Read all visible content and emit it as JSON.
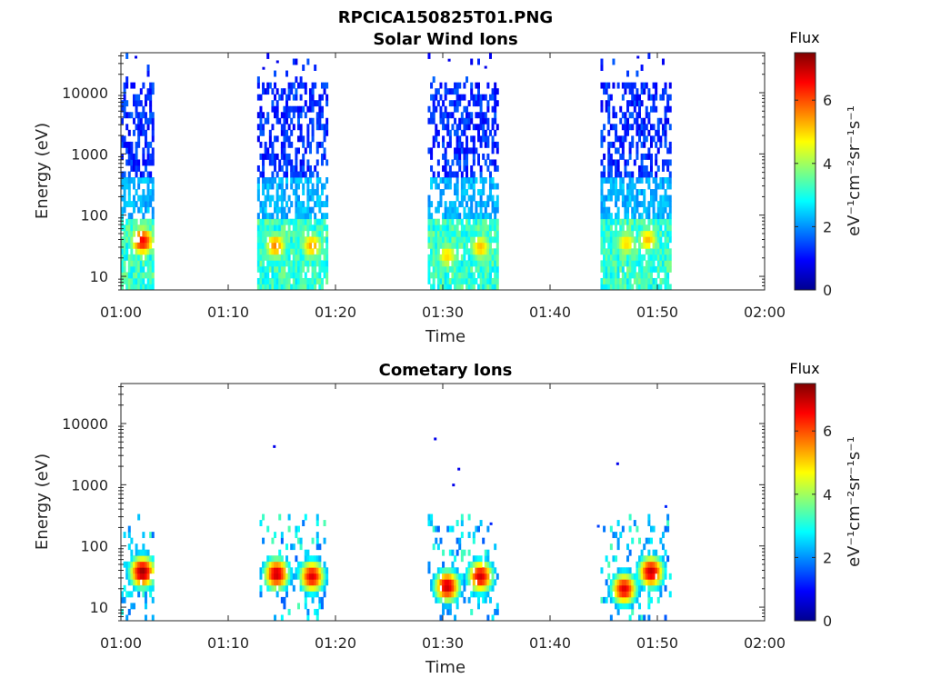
{
  "figure": {
    "title": "RPCICA150825T01.PNG"
  },
  "chart_data": [
    {
      "type": "heatmap",
      "title": "Solar Wind Ions",
      "xlabel": "Time",
      "ylabel": "Energy (eV)",
      "x_ticks": [
        "01:00",
        "01:10",
        "01:20",
        "01:30",
        "01:40",
        "01:50",
        "02:00"
      ],
      "xlim_minutes_after_0100": [
        0,
        60
      ],
      "y_scale": "log",
      "y_ticks": [
        "10",
        "100",
        "1000",
        "10000"
      ],
      "ylim": [
        6,
        45000
      ],
      "colorbar": {
        "title": "Flux",
        "label": "eV⁻¹cm⁻²sr⁻¹s⁻¹",
        "ticks": [
          "0",
          "2",
          "4",
          "6"
        ],
        "range": [
          0,
          7.5
        ],
        "colormap": "jet"
      },
      "sweeps": [
        {
          "start_min": 0.0,
          "end_min": 3.0,
          "peaks": [
            {
              "t": 1.9,
              "e": 38,
              "v": 6.6
            }
          ]
        },
        {
          "start_min": 12.7,
          "end_min": 19.1,
          "peaks": [
            {
              "t": 14.3,
              "e": 32,
              "v": 5.6
            },
            {
              "t": 17.7,
              "e": 32,
              "v": 5.4
            }
          ]
        },
        {
          "start_min": 28.6,
          "end_min": 35.0,
          "peaks": [
            {
              "t": 30.3,
              "e": 22,
              "v": 5.0
            },
            {
              "t": 33.4,
              "e": 30,
              "v": 5.2
            }
          ]
        },
        {
          "start_min": 44.7,
          "end_min": 51.1,
          "peaks": [
            {
              "t": 47.0,
              "e": 35,
              "v": 5.0
            },
            {
              "t": 49.0,
              "e": 40,
              "v": 5.2
            }
          ]
        }
      ],
      "sparse_points": [
        {
          "t": 1.4,
          "e": 38000,
          "v": 0.8
        },
        {
          "t": 13.3,
          "e": 25000,
          "v": 0.8
        },
        {
          "t": 14.6,
          "e": 32000,
          "v": 0.8
        },
        {
          "t": 30.6,
          "e": 34000,
          "v": 0.8
        },
        {
          "t": 34.0,
          "e": 26000,
          "v": 0.8
        },
        {
          "t": 48.2,
          "e": 38000,
          "v": 0.8
        }
      ]
    },
    {
      "type": "heatmap",
      "title": "Cometary Ions",
      "xlabel": "Time",
      "ylabel": "Energy (eV)",
      "x_ticks": [
        "01:00",
        "01:10",
        "01:20",
        "01:30",
        "01:40",
        "01:50",
        "02:00"
      ],
      "xlim_minutes_after_0100": [
        0,
        60
      ],
      "y_scale": "log",
      "y_ticks": [
        "10",
        "100",
        "1000",
        "10000"
      ],
      "ylim": [
        6,
        45000
      ],
      "colorbar": {
        "title": "Flux",
        "label": "eV⁻¹cm⁻²sr⁻¹s⁻¹",
        "ticks": [
          "0",
          "2",
          "4",
          "6"
        ],
        "range": [
          0,
          7.5
        ],
        "colormap": "jet"
      },
      "sweeps": [
        {
          "start_min": 0.0,
          "end_min": 3.0,
          "peaks": [
            {
              "t": 1.9,
              "e": 38,
              "v": 7.3
            }
          ]
        },
        {
          "start_min": 12.7,
          "end_min": 19.1,
          "peaks": [
            {
              "t": 14.4,
              "e": 35,
              "v": 7.0
            },
            {
              "t": 17.7,
              "e": 32,
              "v": 6.8
            }
          ]
        },
        {
          "start_min": 28.6,
          "end_min": 35.0,
          "peaks": [
            {
              "t": 30.3,
              "e": 22,
              "v": 7.0
            },
            {
              "t": 33.4,
              "e": 32,
              "v": 6.9
            }
          ]
        },
        {
          "start_min": 44.7,
          "end_min": 51.1,
          "peaks": [
            {
              "t": 46.8,
              "e": 20,
              "v": 6.8
            },
            {
              "t": 49.3,
              "e": 38,
              "v": 7.0
            }
          ]
        }
      ],
      "sparse_points": [
        {
          "t": 14.3,
          "e": 4200,
          "v": 0.8
        },
        {
          "t": 29.3,
          "e": 5600,
          "v": 0.8
        },
        {
          "t": 31.5,
          "e": 1800,
          "v": 0.8
        },
        {
          "t": 31.0,
          "e": 990,
          "v": 0.8
        },
        {
          "t": 46.3,
          "e": 2200,
          "v": 0.8
        },
        {
          "t": 50.8,
          "e": 440,
          "v": 1.2
        },
        {
          "t": 34.5,
          "e": 230,
          "v": 1.2
        },
        {
          "t": 44.5,
          "e": 210,
          "v": 1.4
        }
      ]
    }
  ]
}
